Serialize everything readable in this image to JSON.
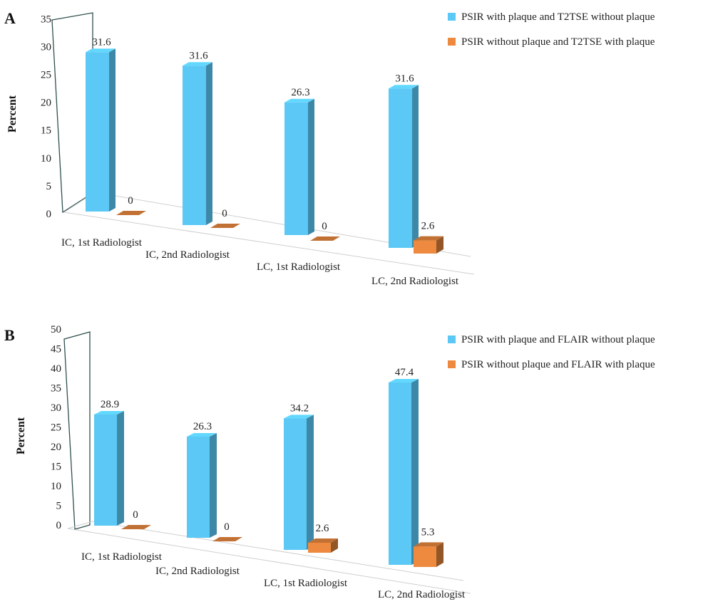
{
  "chart_data": [
    {
      "panel": "A",
      "type": "bar",
      "ylabel": "Percent",
      "ylim": [
        0,
        35
      ],
      "yticks": [
        "0",
        "5",
        "10",
        "15",
        "20",
        "25",
        "30",
        "35"
      ],
      "categories": [
        "IC, 1st Radiologist",
        "IC, 2nd Radiologist",
        "LC, 1st Radiologist",
        "LC, 2nd Radiologist"
      ],
      "series": [
        {
          "name": "PSIR with plaque and T2TSE without plaque",
          "values": [
            31.6,
            31.6,
            26.3,
            31.6
          ],
          "labels": [
            "31.6",
            "31.6",
            "26.3",
            "31.6"
          ],
          "color": "#5bc8f5"
        },
        {
          "name": "PSIR without plaque and T2TSE with plaque",
          "values": [
            0,
            0,
            0,
            2.6
          ],
          "labels": [
            "0",
            "0",
            "0",
            "2.6"
          ],
          "color": "#ed8a3f"
        }
      ],
      "legend_position": "top-right"
    },
    {
      "panel": "B",
      "type": "bar",
      "ylabel": "Percent",
      "ylim": [
        0,
        50
      ],
      "yticks": [
        "0",
        "5",
        "10",
        "15",
        "20",
        "25",
        "30",
        "35",
        "40",
        "45",
        "50"
      ],
      "categories": [
        "IC, 1st Radiologist",
        "IC, 2nd Radiologist",
        "LC, 1st Radiologist",
        "LC, 2nd Radiologist"
      ],
      "series": [
        {
          "name": "PSIR with plaque and FLAIR without plaque",
          "values": [
            28.9,
            26.3,
            34.2,
            47.4
          ],
          "labels": [
            "28.9",
            "26.3",
            "34.2",
            "47.4"
          ],
          "color": "#5bc8f5"
        },
        {
          "name": "PSIR without plaque and FLAIR with plaque",
          "values": [
            0,
            0,
            2.6,
            5.3
          ],
          "labels": [
            "0",
            "0",
            "2.6",
            "5.3"
          ],
          "color": "#ed8a3f"
        }
      ],
      "legend_position": "top-right"
    }
  ]
}
